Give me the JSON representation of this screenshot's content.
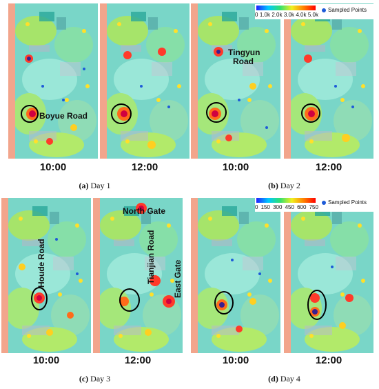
{
  "panels": [
    {
      "caption_letter": "(a)",
      "caption_text": "Day 1",
      "times": [
        "10:00",
        "12:00"
      ],
      "labels": [
        "Boyue Road"
      ]
    },
    {
      "caption_letter": "(b)",
      "caption_text": "Day 2",
      "times": [
        "10:00",
        "12:00"
      ],
      "labels": [
        "Tingyun Road"
      ],
      "legend": {
        "ticks": [
          "0",
          "1.0k",
          "2.0k",
          "3.0k",
          "4.0k",
          "5.0k"
        ],
        "marker": "Sampled Points"
      }
    },
    {
      "caption_letter": "(c)",
      "caption_text": "Day 3",
      "times": [
        "10:00",
        "12:00"
      ],
      "labels": [
        "Houde Road",
        "North Gate",
        "Tianjian Road",
        "East Gate"
      ]
    },
    {
      "caption_letter": "(d)",
      "caption_text": "Day 4",
      "times": [
        "10:00",
        "12:00"
      ],
      "labels": [],
      "legend": {
        "ticks": [
          "0",
          "150",
          "300",
          "450",
          "600",
          "750"
        ],
        "marker": "Sampled Points"
      }
    }
  ],
  "colors": {
    "heat_low": "#30e070",
    "heat_mid": "#f0f020",
    "heat_high": "#ff0000",
    "points": "#1e5bd8",
    "road": "#f2a58c"
  }
}
